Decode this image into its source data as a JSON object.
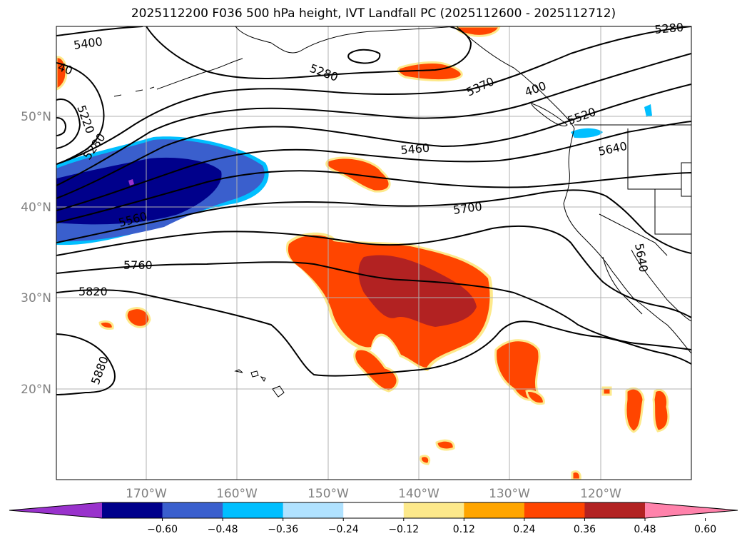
{
  "title": "2025112200 F036 500 hPa height, IVT Landfall PC (2025112600 - 2025112712)",
  "lat_labels": [
    "50°N",
    "40°N",
    "30°N",
    "20°N"
  ],
  "lon_labels": [
    "170°W",
    "160°W",
    "150°W",
    "140°W",
    "130°W",
    "120°W"
  ],
  "contour_labels": [
    "5400",
    "40",
    "5280",
    "5370",
    "400",
    "5220",
    "5280",
    "5460",
    "5520",
    "5640",
    "5560",
    "5700",
    "5760",
    "5640",
    "5820",
    "5880",
    "5280"
  ],
  "colorbar": {
    "ticks": [
      "−0.60",
      "−0.48",
      "−0.36",
      "−0.24",
      "−0.12",
      "0.12",
      "0.24",
      "0.36",
      "0.48",
      "0.60"
    ],
    "colors": [
      "#9932cc",
      "#00008b",
      "#3a5fcd",
      "#00bfff",
      "#b0e2ff",
      "#ffffff",
      "#fde98b",
      "#ffa500",
      "#ff4500",
      "#b22222",
      "#ff82ab"
    ]
  },
  "map_data": {
    "extent_lon": [
      -180,
      -110
    ],
    "extent_lat": [
      10,
      60
    ],
    "fill_colors": {
      "dark_blue": "#00008b",
      "mid_blue": "#3a5fcd",
      "light_blue": "#00bfff",
      "orange_red": "#ff4500",
      "dark_red": "#b22222",
      "yellow": "#fde98b"
    }
  }
}
